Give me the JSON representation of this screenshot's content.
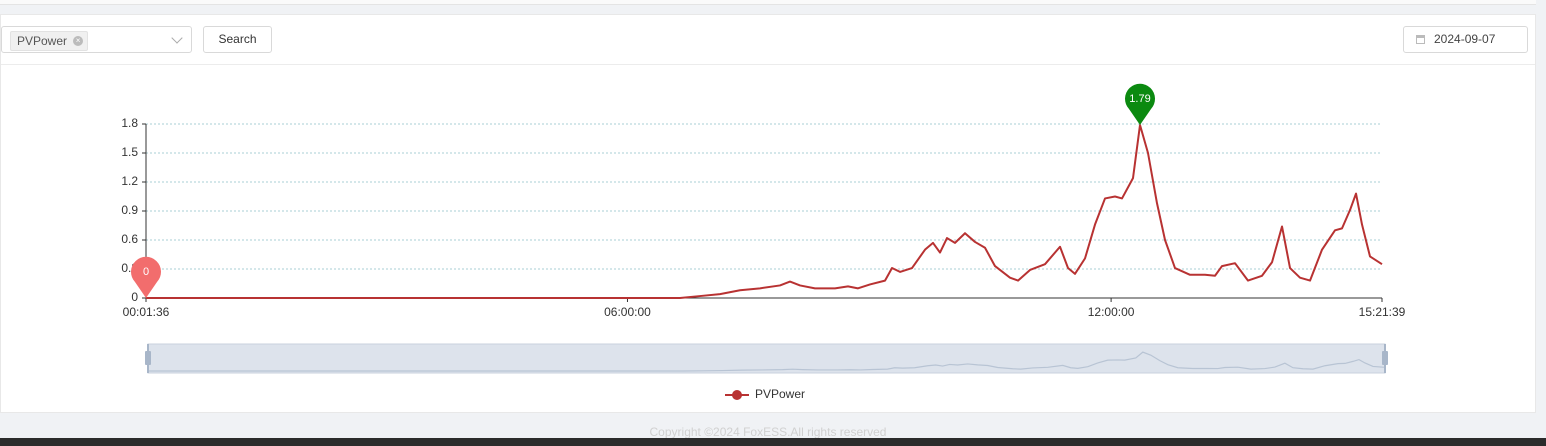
{
  "header_controls": {
    "filter_tag": "PVPower",
    "search_button": "Search",
    "date": "2024-09-07"
  },
  "chart_data": {
    "type": "line",
    "x": [
      96,
      23946,
      24839,
      25733,
      26626,
      27519,
      28412,
      28859,
      29306,
      29976,
      30869,
      31449,
      31896,
      32432,
      33102,
      33415,
      33772,
      34308,
      34889,
      35246,
      35558,
      35871,
      36228,
      36675,
      37122,
      37568,
      38015,
      38685,
      39042,
      39578,
      40248,
      40918,
      41275,
      41588,
      42035,
      42481,
      42928,
      43374,
      43687,
      44178,
      44491,
      44848,
      45250,
      45608,
      46054,
      46724,
      47394,
      47841,
      48153,
      48734,
      49315,
      49940,
      50387,
      50833,
      51191,
      51637,
      52084,
      52620,
      53200,
      53513,
      53870,
      54138,
      54406,
      54763,
      55299
    ],
    "xlim": [
      96,
      55299
    ],
    "xticks": [
      {
        "value": 96,
        "label": "00:01:36"
      },
      {
        "value": 21600,
        "label": "06:00:00"
      },
      {
        "value": 43200,
        "label": "12:00:00"
      },
      {
        "value": 55299,
        "label": "15:21:39"
      }
    ],
    "ylim": [
      0,
      1.8
    ],
    "yticks": [
      0,
      0.3,
      0.6,
      0.9,
      1.2,
      1.5,
      1.8
    ],
    "grid": true,
    "mark_points": true,
    "mark_colors": {
      "max": "#0b8a10",
      "min": "#f26d6d"
    },
    "data_zoom": true,
    "series": [
      {
        "name": "PVPower",
        "color": "#b83232",
        "values": [
          0,
          0,
          0.02,
          0.04,
          0.08,
          0.1,
          0.13,
          0.17,
          0.13,
          0.1,
          0.1,
          0.12,
          0.1,
          0.14,
          0.18,
          0.31,
          0.27,
          0.31,
          0.5,
          0.57,
          0.47,
          0.62,
          0.57,
          0.67,
          0.58,
          0.52,
          0.33,
          0.21,
          0.18,
          0.29,
          0.35,
          0.53,
          0.31,
          0.25,
          0.41,
          0.76,
          1.03,
          1.05,
          1.03,
          1.24,
          1.79,
          1.5,
          0.98,
          0.6,
          0.31,
          0.24,
          0.24,
          0.23,
          0.33,
          0.36,
          0.18,
          0.23,
          0.37,
          0.74,
          0.31,
          0.21,
          0.18,
          0.5,
          0.7,
          0.72,
          0.91,
          1.08,
          0.76,
          0.43,
          0.35
        ]
      }
    ]
  },
  "footer": {
    "copyright": "Copyright ©2024 FoxESS.All rights reserved"
  }
}
